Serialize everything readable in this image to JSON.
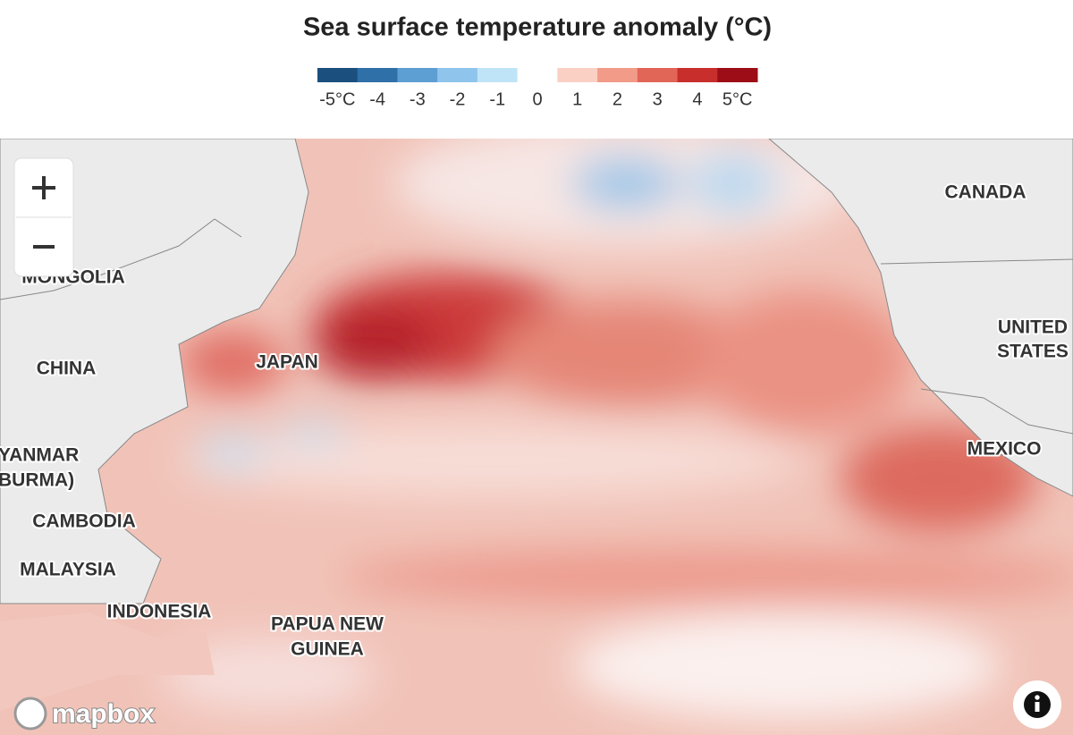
{
  "header": {
    "title": "Sea surface temperature anomaly (°C)"
  },
  "legend": {
    "labels": [
      "-5°C",
      "-4",
      "-3",
      "-2",
      "-1",
      "0",
      "1",
      "2",
      "3",
      "4",
      "5°C"
    ],
    "colors": [
      "#1b4f7e",
      "#2f70a9",
      "#5d9fd3",
      "#8fc5ec",
      "#bfe4f7",
      "#ffffff",
      "#fbd0c4",
      "#f29b89",
      "#e26658",
      "#c82f2c",
      "#9d0d17"
    ]
  },
  "map": {
    "labels": [
      "CANADA",
      "MONGOLIA",
      "CHINA",
      "JAPAN",
      "UNITED",
      "STATES",
      "MEXICO",
      "YANMAR",
      "BURMA)",
      "CAMBODIA",
      "MALAYSIA",
      "INDONESIA",
      "PAPUA NEW",
      "GUINEA"
    ],
    "attribution": "mapbox"
  }
}
